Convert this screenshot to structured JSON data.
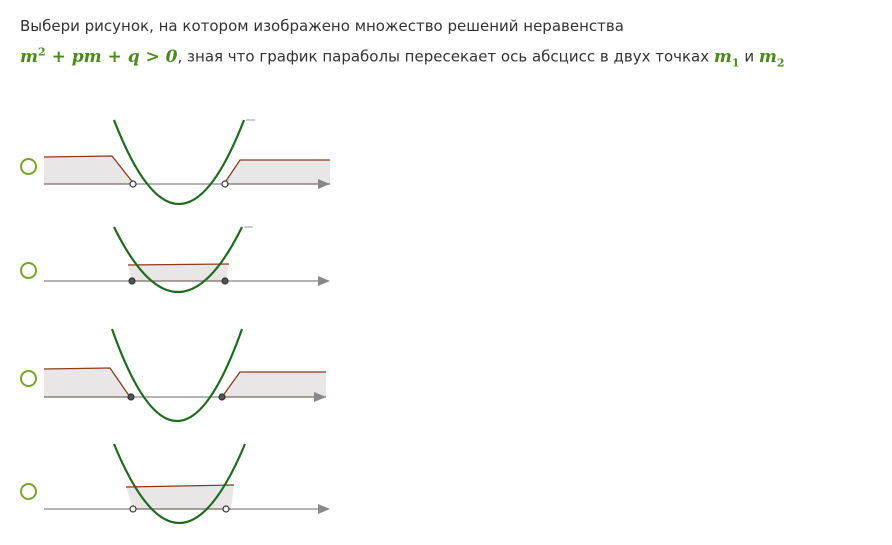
{
  "question": {
    "line1": "Выбери рисунок, на котором изображено множество решений неравенства",
    "expr_main": "m",
    "expr_pow": "2",
    "expr_rest": " + pm + q > 0",
    "mid_text": ", зная что график параболы пересекает ось абсцисс в двух точках ",
    "m1_letter": "m",
    "m1_sub": "1",
    "and_text": " и ",
    "m2_letter": "m",
    "m2_sub": "2"
  },
  "options": [
    {
      "id": "option-1",
      "shading": "outside",
      "points": "open",
      "selected": false
    },
    {
      "id": "option-2",
      "shading": "inside",
      "points": "closed",
      "selected": false
    },
    {
      "id": "option-3",
      "shading": "outside",
      "points": "closed",
      "selected": false
    },
    {
      "id": "option-4",
      "shading": "inside",
      "points": "open",
      "selected": false
    }
  ],
  "colors": {
    "accent": "#7aa32a",
    "parabola": "#1e6b1e",
    "shade_fill": "#e8e6e6",
    "shade_edge": "#8b3a1a",
    "axis": "#888888",
    "math": "#4a8a1c"
  }
}
